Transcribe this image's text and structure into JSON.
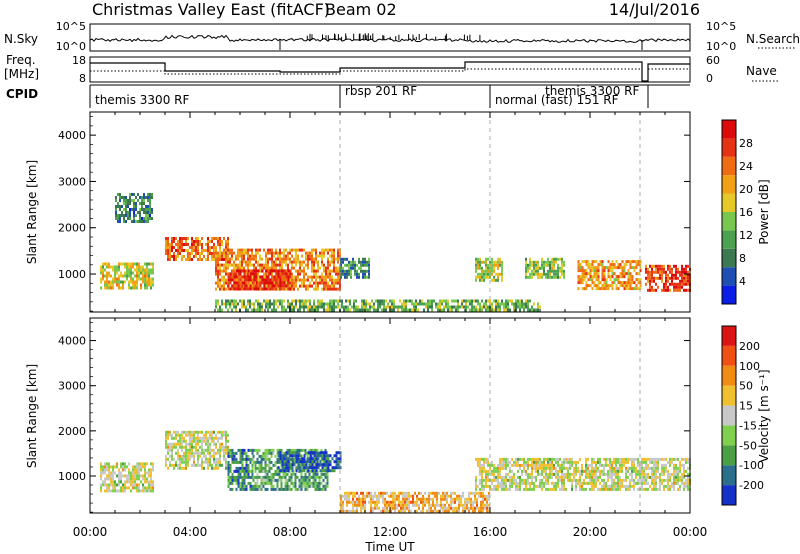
{
  "header": {
    "title": "Christmas Valley East (fitACF)",
    "beam": "Beam 02",
    "date": "14/Jul/2016"
  },
  "strips": {
    "nsky": {
      "label": "N.Sky",
      "ticks": [
        "10^5",
        "10^0"
      ]
    },
    "nsearch": {
      "label": "N.Search",
      "ticks": [
        "10^5",
        "10^0"
      ]
    },
    "freq": {
      "label_line1": "Freq.",
      "label_line2": "[MHz]",
      "ticks": [
        "18",
        "8"
      ]
    },
    "nave": {
      "label": "Nave",
      "ticks": [
        "60",
        "0"
      ]
    },
    "cpid": {
      "label": "CPID",
      "segments": [
        {
          "name": "themis 3300 RF",
          "start_hour": 0.0,
          "end_hour": 10.0
        },
        {
          "name": "rbsp 201 RF",
          "start_hour": 10.0,
          "end_hour": 16.0
        },
        {
          "name": "normal (fast) 151 RF",
          "start_hour": 16.0,
          "end_hour": 22.0
        },
        {
          "name": "themis 3300 RF",
          "start_hour": 18.9,
          "end_hour": 22.0
        }
      ]
    }
  },
  "chart_data": [
    {
      "type": "heatmap",
      "name": "power",
      "ylabel": "Slant Range [km]",
      "y_ticks": [
        "1000",
        "2000",
        "3000",
        "4000"
      ],
      "ylim": [
        180,
        4500
      ],
      "xlim": [
        0,
        24
      ],
      "colorbar_label": "Power [dB]",
      "colorbar_ticks": [
        "4",
        "8",
        "12",
        "16",
        "20",
        "24",
        "28"
      ],
      "colors": [
        "#0a1ee6",
        "#1e50b4",
        "#3c7850",
        "#4ca050",
        "#78c850",
        "#e6c828",
        "#f0a014",
        "#f06c14",
        "#e63214",
        "#dc0a0a"
      ],
      "echo_regions": [
        {
          "x": [
            0.4,
            2.5
          ],
          "y": [
            700,
            1250
          ],
          "level": 0.55
        },
        {
          "x": [
            1.0,
            2.5
          ],
          "y": [
            2150,
            2750
          ],
          "level": 0.25
        },
        {
          "x": [
            3.0,
            5.5
          ],
          "y": [
            1300,
            1800
          ],
          "level": 0.75
        },
        {
          "x": [
            5.0,
            10.0
          ],
          "y": [
            650,
            1550
          ],
          "level": 0.7
        },
        {
          "x": [
            5.5,
            8.0
          ],
          "y": [
            700,
            1100
          ],
          "level": 0.9
        },
        {
          "x": [
            10.0,
            11.2
          ],
          "y": [
            900,
            1350
          ],
          "level": 0.3
        },
        {
          "x": [
            15.4,
            16.5
          ],
          "y": [
            850,
            1350
          ],
          "level": 0.5
        },
        {
          "x": [
            17.4,
            19.0
          ],
          "y": [
            950,
            1350
          ],
          "level": 0.45
        },
        {
          "x": [
            19.5,
            22.0
          ],
          "y": [
            700,
            1300
          ],
          "level": 0.65
        },
        {
          "x": [
            22.2,
            24.0
          ],
          "y": [
            650,
            1200
          ],
          "level": 0.85
        },
        {
          "x": [
            5.0,
            18.0
          ],
          "y": [
            200,
            450
          ],
          "level": 0.4
        }
      ]
    },
    {
      "type": "heatmap",
      "name": "velocity",
      "ylabel": "Slant Range [km]",
      "y_ticks": [
        "1000",
        "2000",
        "3000",
        "4000"
      ],
      "ylim": [
        180,
        4500
      ],
      "xlim": [
        0,
        24
      ],
      "colorbar_label": "Velocity [m s⁻¹]",
      "colorbar_ticks": [
        "200",
        "100",
        "50",
        "15",
        "-15",
        "-50",
        "-100",
        "-200"
      ],
      "colors": [
        "#1432c8",
        "#2c6e8c",
        "#4ca044",
        "#80d050",
        "#c8c8c8",
        "#f0c030",
        "#f08c14",
        "#f05014",
        "#dc1414"
      ],
      "echo_regions": [
        {
          "x": [
            0.4,
            2.5
          ],
          "y": [
            700,
            1300
          ],
          "level": 0.5
        },
        {
          "x": [
            3.0,
            5.5
          ],
          "y": [
            1200,
            2000
          ],
          "level": 0.5
        },
        {
          "x": [
            5.5,
            6.5
          ],
          "y": [
            700,
            1600
          ],
          "level": 0.22
        },
        {
          "x": [
            6.5,
            9.5
          ],
          "y": [
            700,
            1600
          ],
          "level": 0.3
        },
        {
          "x": [
            7.5,
            10.0
          ],
          "y": [
            1100,
            1550
          ],
          "level": 0.1
        },
        {
          "x": [
            10.0,
            16.0
          ],
          "y": [
            200,
            650
          ],
          "level": 0.62
        },
        {
          "x": [
            15.4,
            24.0
          ],
          "y": [
            700,
            1400
          ],
          "level": 0.5
        }
      ]
    }
  ],
  "x_axis": {
    "label": "Time UT",
    "ticks": [
      "00:00",
      "04:00",
      "08:00",
      "12:00",
      "16:00",
      "20:00",
      "00:00"
    ]
  }
}
